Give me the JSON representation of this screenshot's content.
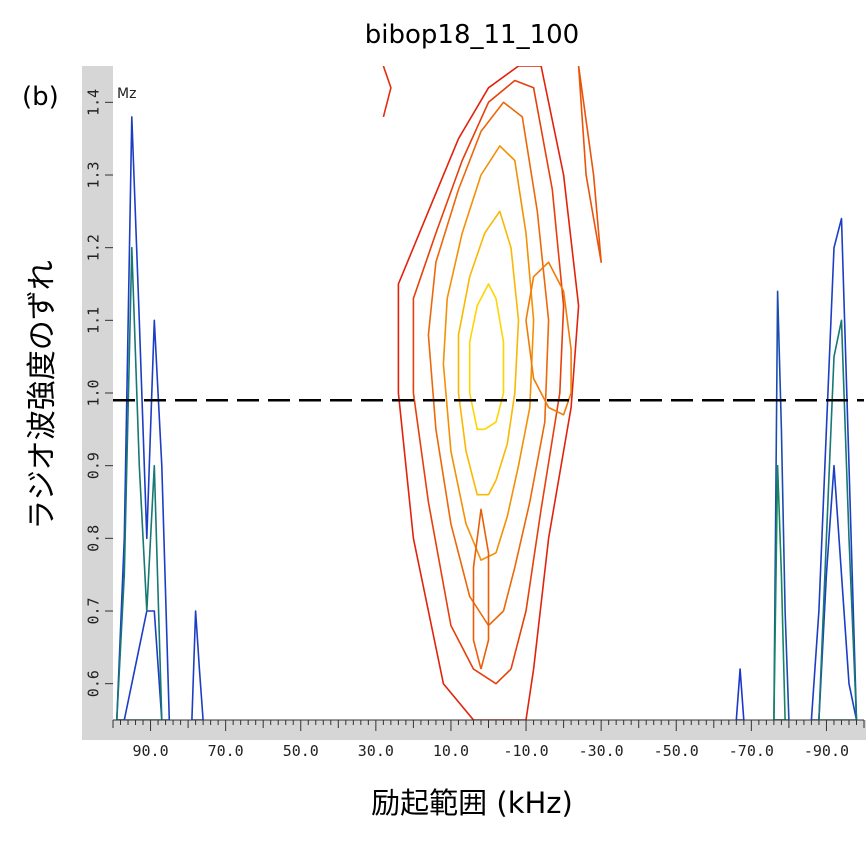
{
  "chart_data": {
    "type": "contour",
    "title": "bibop18_11_100",
    "panel_label": "(b)",
    "inner_label": "Mz",
    "xlabel": "励起範囲 (kHz)",
    "ylabel": "ラジオ波強度のずれ",
    "xlim": [
      100,
      -100
    ],
    "ylim": [
      0.55,
      1.45
    ],
    "x_ticks": [
      90,
      70,
      50,
      30,
      10,
      -10,
      -30,
      -50,
      -70,
      -90
    ],
    "x_tick_labels": [
      "90.0",
      "70.0",
      "50.0",
      "30.0",
      "10.0",
      "-10.0",
      "-30.0",
      "-50.0",
      "-70.0",
      "-90.0"
    ],
    "y_ticks": [
      0.6,
      0.7,
      0.8,
      0.9,
      1.0,
      1.1,
      1.2,
      1.3,
      1.4
    ],
    "y_tick_labels": [
      "0.6",
      "0.7",
      "0.8",
      "0.9",
      "1.0",
      "1.1",
      "1.2",
      "1.3",
      "1.4"
    ],
    "reference_line": {
      "y": 0.99,
      "style": "dashed",
      "color": "#000000"
    },
    "colors": {
      "plot_bg": "#ffffff",
      "frame": "#d6d6d6",
      "red": "#e0180e",
      "yellow": "#ffe000",
      "blue": "#1d2fd8",
      "green": "#10c010"
    },
    "series": [
      {
        "x": [
          -10,
          -4,
          4,
          12,
          20,
          24,
          24,
          16,
          8,
          0,
          -8,
          -14,
          -20,
          -24,
          -22,
          -16,
          -12,
          -10
        ],
        "y": [
          0.55,
          0.55,
          0.55,
          0.6,
          0.8,
          1.0,
          1.15,
          1.25,
          1.35,
          1.42,
          1.45,
          1.45,
          1.3,
          1.12,
          0.98,
          0.8,
          0.62,
          0.55
        ],
        "level": 0.05
      },
      {
        "x": [
          -6,
          -2,
          4,
          10,
          16,
          20,
          20,
          14,
          7,
          0,
          -7,
          -12,
          -17,
          -20,
          -19,
          -14,
          -10,
          -6
        ],
        "y": [
          0.62,
          0.6,
          0.62,
          0.68,
          0.85,
          1.0,
          1.13,
          1.22,
          1.32,
          1.4,
          1.43,
          1.42,
          1.28,
          1.12,
          1.0,
          0.84,
          0.7,
          0.62
        ],
        "level": 0.2
      },
      {
        "x": [
          -4,
          0,
          5,
          10,
          14,
          16,
          14,
          8,
          2,
          -4,
          -9,
          -13,
          -16,
          -15,
          -11,
          -7,
          -4
        ],
        "y": [
          0.7,
          0.68,
          0.72,
          0.82,
          0.95,
          1.08,
          1.18,
          1.28,
          1.36,
          1.4,
          1.38,
          1.25,
          1.1,
          0.96,
          0.85,
          0.76,
          0.7
        ],
        "level": 0.4
      },
      {
        "x": [
          -2,
          2,
          6,
          10,
          12,
          11,
          7,
          2,
          -3,
          -7,
          -10,
          -12,
          -11,
          -8,
          -5,
          -2
        ],
        "y": [
          0.78,
          0.77,
          0.82,
          0.92,
          1.04,
          1.13,
          1.22,
          1.3,
          1.34,
          1.32,
          1.22,
          1.1,
          0.98,
          0.9,
          0.83,
          0.78
        ],
        "level": 0.6
      },
      {
        "x": [
          0,
          3,
          6,
          8,
          8,
          5,
          1,
          -3,
          -6,
          -8,
          -7,
          -5,
          -2,
          0
        ],
        "y": [
          0.86,
          0.86,
          0.92,
          1.0,
          1.08,
          1.16,
          1.22,
          1.25,
          1.2,
          1.1,
          1.0,
          0.93,
          0.88,
          0.86
        ],
        "level": 0.8
      },
      {
        "x": [
          1,
          3,
          5,
          5,
          3,
          0,
          -2,
          -4,
          -4,
          -2,
          1
        ],
        "y": [
          0.95,
          0.95,
          1.0,
          1.07,
          1.12,
          1.15,
          1.13,
          1.07,
          1.0,
          0.96,
          0.95
        ],
        "level": 0.95
      },
      {
        "x": [
          -16,
          -12,
          -10,
          -12,
          -16,
          -20,
          -22,
          -22,
          -20,
          -16
        ],
        "y": [
          0.98,
          1.02,
          1.1,
          1.16,
          1.18,
          1.14,
          1.06,
          1.0,
          0.97,
          0.98
        ],
        "level": 0.5
      },
      {
        "x": [
          2,
          4,
          4,
          2,
          0,
          0,
          2
        ],
        "y": [
          0.62,
          0.66,
          0.76,
          0.84,
          0.78,
          0.66,
          0.62
        ],
        "level": 0.35
      },
      {
        "x": [
          28,
          26,
          28
        ],
        "y": [
          1.38,
          1.42,
          1.45
        ],
        "level": 0.1
      },
      {
        "x": [
          -24,
          -28,
          -30,
          -26,
          -24
        ],
        "y": [
          1.45,
          1.3,
          1.18,
          1.3,
          1.45
        ],
        "level": 0.3
      },
      {
        "x": [
          -98,
          -96,
          -94,
          -92,
          -90,
          -88,
          -86,
          -88,
          -90,
          -92,
          -94,
          -96,
          -98
        ],
        "y": [
          0.55,
          0.9,
          1.24,
          1.2,
          0.95,
          0.7,
          0.55,
          0.55,
          0.75,
          0.9,
          0.75,
          0.6,
          0.55
        ],
        "level": 0.1
      },
      {
        "x": [
          -98,
          -96,
          -94,
          -92,
          -90,
          -88,
          -98
        ],
        "y": [
          0.55,
          0.8,
          1.1,
          1.05,
          0.8,
          0.55,
          0.55
        ],
        "level": 0.5
      },
      {
        "x": [
          -76,
          -77,
          -78,
          -79,
          -80,
          -76
        ],
        "y": [
          0.55,
          1.14,
          0.95,
          0.7,
          0.55,
          0.55
        ],
        "level": 0.2
      },
      {
        "x": [
          -76,
          -77,
          -78,
          -79,
          -76
        ],
        "y": [
          0.55,
          0.9,
          0.75,
          0.55,
          0.55
        ],
        "level": 0.6
      },
      {
        "x": [
          -66,
          -67,
          -68,
          -66
        ],
        "y": [
          0.55,
          0.62,
          0.55,
          0.55
        ],
        "level": 0.05
      },
      {
        "x": [
          99,
          97,
          95,
          93,
          91,
          89,
          87,
          85,
          87,
          89,
          91,
          93,
          95,
          97,
          99
        ],
        "y": [
          0.55,
          0.8,
          1.38,
          1.1,
          0.8,
          1.1,
          0.9,
          0.55,
          0.55,
          0.7,
          0.7,
          0.65,
          0.6,
          0.55,
          0.55
        ],
        "level": 0.1
      },
      {
        "x": [
          99,
          97,
          95,
          93,
          91,
          89,
          87,
          99
        ],
        "y": [
          0.55,
          0.75,
          1.2,
          0.9,
          0.7,
          0.9,
          0.55,
          0.55
        ],
        "level": 0.5
      },
      {
        "x": [
          79,
          78,
          77,
          76,
          79
        ],
        "y": [
          0.55,
          0.7,
          0.62,
          0.55,
          0.55
        ],
        "level": 0.1
      }
    ]
  }
}
